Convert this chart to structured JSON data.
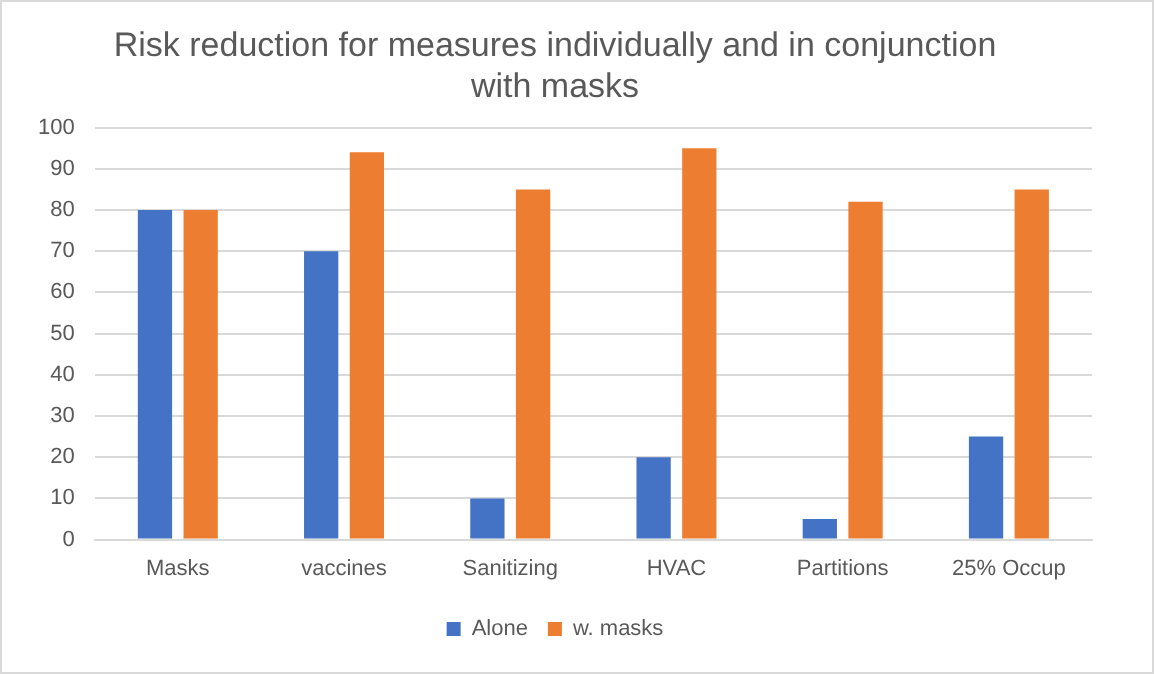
{
  "chart_data": {
    "type": "bar",
    "title": [
      "Risk reduction for measures individually and in conjunction",
      "with masks"
    ],
    "categories": [
      "Masks",
      "vaccines",
      "Sanitizing",
      "HVAC",
      "Partitions",
      "25% Occup"
    ],
    "series": [
      {
        "name": "Alone",
        "color": "#4472c4",
        "values": [
          80,
          70,
          10,
          20,
          5,
          25
        ]
      },
      {
        "name": "w. masks",
        "color": "#ed7d31",
        "values": [
          80,
          94,
          85,
          95,
          82,
          85
        ]
      }
    ],
    "ylim": [
      0,
      100
    ],
    "yticks": [
      0,
      10,
      20,
      30,
      40,
      50,
      60,
      70,
      80,
      90,
      100
    ],
    "grid": "y",
    "legend": "bottom"
  }
}
